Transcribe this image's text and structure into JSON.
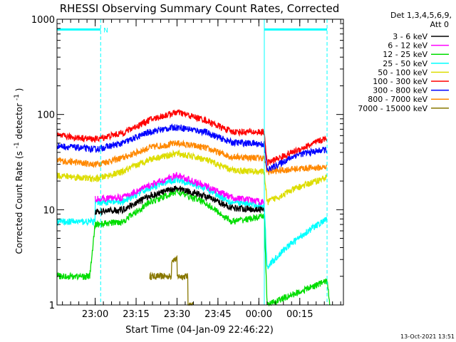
{
  "chart_data": {
    "type": "line",
    "title": "RHESSI Observing Summary Count Rates, Corrected",
    "xlabel": "Start Time (04-Jan-09 22:46:22)",
    "ylabel_main": "Corrected Count Rate (s",
    "ylabel_sup1": "-1",
    "ylabel_mid": " detector",
    "ylabel_sup2": "-1",
    "ylabel_end": ")",
    "x_range_min": [
      0,
      105
    ],
    "y_scale": "log",
    "ylim": [
      1,
      1000
    ],
    "x_ticks": [
      {
        "label": "23:00",
        "t": 14
      },
      {
        "label": "23:15",
        "t": 29
      },
      {
        "label": "23:30",
        "t": 44
      },
      {
        "label": "23:45",
        "t": 59
      },
      {
        "label": "00:00",
        "t": 74
      },
      {
        "label": "00:15",
        "t": 89
      }
    ],
    "y_ticks": [
      {
        "label": "1",
        "v": 1
      },
      {
        "label": "10",
        "v": 10
      },
      {
        "label": "100",
        "v": 100
      },
      {
        "label": "1000",
        "v": 1000
      }
    ],
    "legend_header": [
      "Det 1,3,4,5,6,9,",
      "Att 0"
    ],
    "night_label": "N",
    "footer_timestamp": "13-Oct-2021 13:51",
    "orbit_markers": [
      {
        "t_start": 0,
        "t_end": 16,
        "y": 780,
        "label_night": true
      },
      {
        "t_start": 76,
        "t_end": 99,
        "y": 780,
        "label_night": false
      }
    ],
    "vertical_lines": [
      0,
      16,
      76,
      99
    ],
    "series": [
      {
        "name": "3 - 6 keV",
        "color": "#000000",
        "points": [
          [
            14,
            9.5
          ],
          [
            24,
            10
          ],
          [
            34,
            14
          ],
          [
            44,
            17
          ],
          [
            54,
            14
          ],
          [
            64,
            10.5
          ],
          [
            76,
            10
          ]
        ]
      },
      {
        "name": "6 - 12 keV",
        "color": "#ff00ff",
        "points": [
          [
            14,
            13
          ],
          [
            24,
            13.5
          ],
          [
            34,
            18
          ],
          [
            44,
            23
          ],
          [
            54,
            18
          ],
          [
            64,
            13.5
          ],
          [
            76,
            12
          ]
        ]
      },
      {
        "name": "12 - 25 keV",
        "color": "#00dd00",
        "points": [
          [
            0,
            2
          ],
          [
            12,
            2
          ],
          [
            14,
            7
          ],
          [
            24,
            7.5
          ],
          [
            34,
            12
          ],
          [
            44,
            15.5
          ],
          [
            54,
            12
          ],
          [
            64,
            7.5
          ],
          [
            76,
            8.5
          ],
          [
            77,
            1
          ],
          [
            99,
            1.8
          ],
          [
            100,
            1
          ]
        ]
      },
      {
        "name": "25 - 50 keV",
        "color": "#00ffff",
        "points": [
          [
            0,
            7.5
          ],
          [
            14,
            7.5
          ],
          [
            14,
            12
          ],
          [
            24,
            12
          ],
          [
            34,
            17
          ],
          [
            44,
            21
          ],
          [
            54,
            17
          ],
          [
            64,
            12
          ],
          [
            76,
            11
          ],
          [
            77,
            2.5
          ],
          [
            84,
            4
          ],
          [
            92,
            6
          ],
          [
            99,
            8
          ]
        ]
      },
      {
        "name": "50 - 100 keV",
        "color": "#dddd00",
        "points": [
          [
            0,
            23
          ],
          [
            14,
            21
          ],
          [
            24,
            25
          ],
          [
            34,
            34
          ],
          [
            44,
            39
          ],
          [
            54,
            34
          ],
          [
            64,
            26
          ],
          [
            76,
            25
          ],
          [
            77,
            12
          ],
          [
            88,
            17
          ],
          [
            99,
            22
          ]
        ]
      },
      {
        "name": "100 - 300 keV",
        "color": "#ff0000",
        "points": [
          [
            0,
            60
          ],
          [
            14,
            55
          ],
          [
            24,
            64
          ],
          [
            34,
            88
          ],
          [
            44,
            106
          ],
          [
            54,
            88
          ],
          [
            64,
            66
          ],
          [
            76,
            65
          ],
          [
            77,
            31
          ],
          [
            88,
            42
          ],
          [
            99,
            57
          ]
        ]
      },
      {
        "name": "300 - 800 keV",
        "color": "#0000ff",
        "points": [
          [
            0,
            47
          ],
          [
            14,
            43
          ],
          [
            24,
            50
          ],
          [
            34,
            66
          ],
          [
            44,
            74
          ],
          [
            54,
            66
          ],
          [
            64,
            51
          ],
          [
            76,
            49
          ],
          [
            77,
            26
          ],
          [
            88,
            38
          ],
          [
            99,
            43
          ]
        ]
      },
      {
        "name": "800 - 7000 keV",
        "color": "#ff8800",
        "points": [
          [
            0,
            33
          ],
          [
            14,
            30
          ],
          [
            24,
            35
          ],
          [
            34,
            45
          ],
          [
            44,
            50
          ],
          [
            54,
            45
          ],
          [
            64,
            36
          ],
          [
            76,
            35
          ],
          [
            77,
            25
          ],
          [
            88,
            27
          ],
          [
            99,
            28
          ]
        ]
      },
      {
        "name": "7000 - 15000 keV",
        "color": "#887700",
        "points": [
          [
            34,
            2
          ],
          [
            42,
            2
          ],
          [
            42,
            3
          ],
          [
            44,
            3
          ],
          [
            44,
            2
          ],
          [
            48,
            2
          ],
          [
            48,
            1
          ],
          [
            50,
            1
          ]
        ]
      }
    ]
  }
}
